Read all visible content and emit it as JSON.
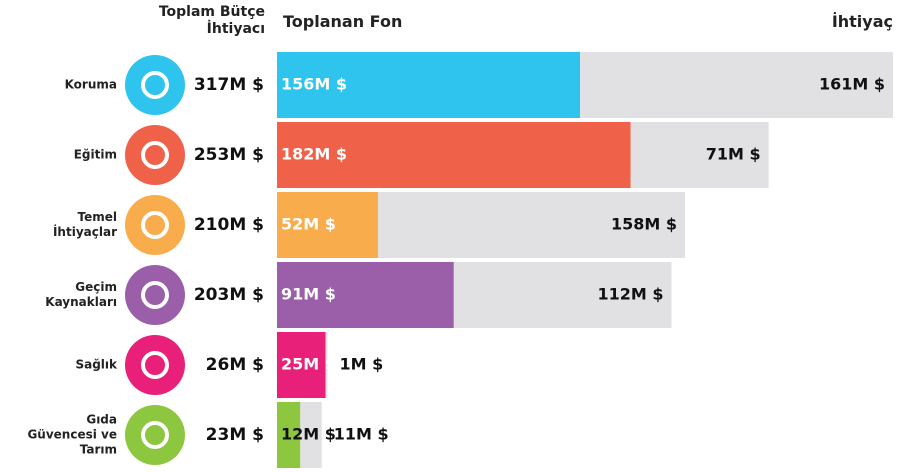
{
  "chart_data": {
    "type": "stacked-bar-horizontal",
    "categories": [
      "Koruma",
      "Eğitim",
      "Temel İhtiyaçlar",
      "Geçim Kaynakları",
      "Sağlık",
      "Gıda Güvencesi ve Tarım"
    ],
    "totals": {
      "name": "Toplam Bütçe İhtiyacı",
      "values": [
        317,
        253,
        210,
        203,
        26,
        23
      ],
      "value_labels": [
        "317M $",
        "253M $",
        "210M $",
        "203M $",
        "26M $",
        "23M $"
      ]
    },
    "series": [
      {
        "name": "Toplanan Fon",
        "colors": [
          "#2ec4ee",
          "#f0614a",
          "#f9ac4c",
          "#9b5fa9",
          "#e8207a",
          "#8dc63f"
        ],
        "values": [
          156,
          182,
          52,
          91,
          25,
          12
        ],
        "value_labels": [
          "156M $",
          "182M $",
          "52M $",
          "91M $",
          "25M $",
          "12M $"
        ]
      },
      {
        "name": "İhtiyaç",
        "color": "#e1e1e3",
        "values": [
          161,
          71,
          158,
          112,
          1,
          11
        ],
        "value_labels": [
          "161M $",
          "71M $",
          "158M $",
          "112M $",
          "1M $",
          "11M $"
        ]
      }
    ],
    "xlim": [
      0,
      317
    ]
  }
}
